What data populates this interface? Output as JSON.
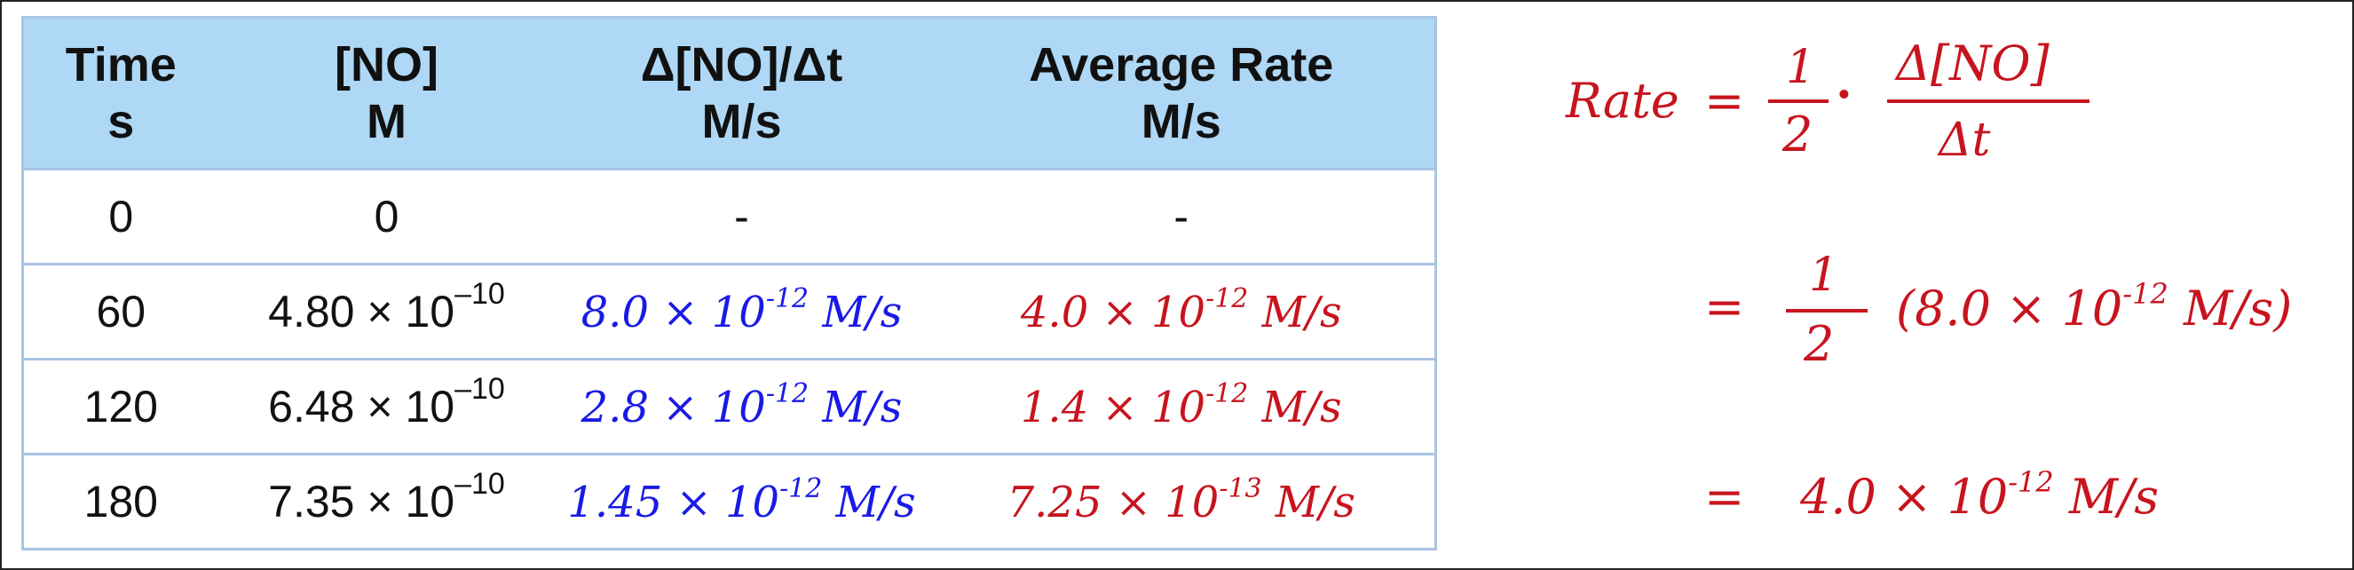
{
  "table": {
    "headers": [
      {
        "line1": "Time",
        "line2": "s"
      },
      {
        "line1": "[NO]",
        "line2": "M"
      },
      {
        "line1": "Δ[NO]/Δt",
        "line2": "M/s"
      },
      {
        "line1": "Average Rate",
        "line2": "M/s"
      }
    ],
    "rows": [
      {
        "time": "0",
        "no_conc": {
          "plain": "0"
        },
        "delta": {
          "plain": "-"
        },
        "avg": {
          "plain": "-"
        }
      },
      {
        "time": "60",
        "no_conc": {
          "mantissa": "4.80",
          "times": "×",
          "base": "10",
          "exp": "–10"
        },
        "delta": {
          "mantissa": "8.0",
          "times": "×",
          "base": "10",
          "exp": "-12",
          "unit": "M/s"
        },
        "avg": {
          "mantissa": "4.0",
          "times": "×",
          "base": "10",
          "exp": "-12",
          "unit": "M/s"
        }
      },
      {
        "time": "120",
        "no_conc": {
          "mantissa": "6.48",
          "times": "×",
          "base": "10",
          "exp": "–10"
        },
        "delta": {
          "mantissa": "2.8",
          "times": "×",
          "base": "10",
          "exp": "-12",
          "unit": "M/s"
        },
        "avg": {
          "mantissa": "1.4",
          "times": "×",
          "base": "10",
          "exp": "-12",
          "unit": "M/s"
        }
      },
      {
        "time": "180",
        "no_conc": {
          "mantissa": "7.35",
          "times": "×",
          "base": "10",
          "exp": "–10"
        },
        "delta": {
          "mantissa": "1.45",
          "times": "×",
          "base": "10",
          "exp": "-12",
          "unit": "M/s"
        },
        "avg": {
          "mantissa": "7.25",
          "times": "×",
          "base": "10",
          "exp": "-13",
          "unit": "M/s"
        }
      }
    ]
  },
  "equation": {
    "rate_label": "Rate",
    "equals": "=",
    "frac1": {
      "num": "1",
      "den": "2"
    },
    "dot": "·",
    "frac2": {
      "num": "Δ[NO]",
      "den": "Δt"
    },
    "line2": {
      "equals": "=",
      "num": "1",
      "den": "2",
      "open": "(",
      "mantissa": "8.0",
      "times": "×",
      "base": "10",
      "exp": "-12",
      "unit": "M/s",
      "close": ")"
    },
    "line3": {
      "equals": "=",
      "mantissa": "4.0",
      "times": "×",
      "base": "10",
      "exp": "-12",
      "unit": "M/s"
    }
  },
  "colors": {
    "header_bg": "#aed8f5",
    "grid": "#a8c4e4",
    "handwriting_blue": "#1a1ae6",
    "handwriting_red": "#c8141e"
  }
}
